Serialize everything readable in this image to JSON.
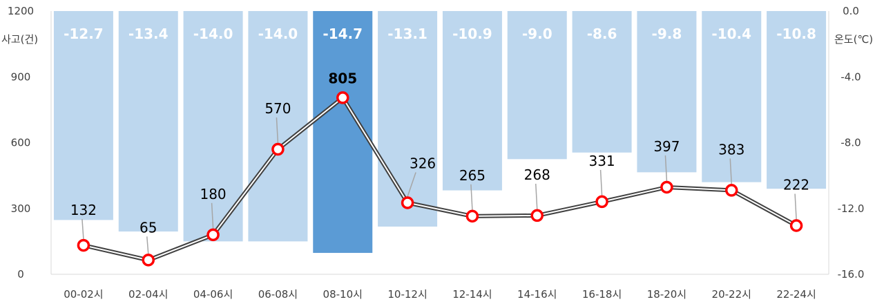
{
  "chart_data": {
    "type": "bar+line",
    "categories": [
      "00-02시",
      "02-04시",
      "04-06시",
      "06-08시",
      "08-10시",
      "10-12시",
      "12-14시",
      "14-16시",
      "16-18시",
      "18-20시",
      "20-22시",
      "22-24시"
    ],
    "series": [
      {
        "name": "온도(℃)",
        "type": "bar",
        "axis": "right",
        "values": [
          -12.7,
          -13.4,
          -14.0,
          -14.0,
          -14.7,
          -13.1,
          -10.9,
          -9.0,
          -8.6,
          -9.8,
          -10.4,
          -10.8
        ],
        "labels": [
          "-12.7",
          "-13.4",
          "-14.0",
          "-14.0",
          "-14.7",
          "-13.1",
          "-10.9",
          "-9.0",
          "-8.6",
          "-9.8",
          "-10.4",
          "-10.8"
        ],
        "highlight_index": 4
      },
      {
        "name": "사고(건)",
        "type": "line",
        "axis": "left",
        "values": [
          132,
          65,
          180,
          570,
          805,
          326,
          265,
          268,
          331,
          397,
          383,
          222
        ],
        "labels": [
          "132",
          "65",
          "180",
          "570",
          "805",
          "326",
          "265",
          "268",
          "331",
          "397",
          "383",
          "222"
        ],
        "highlight_index": 4
      }
    ],
    "left_axis": {
      "title": "사고(건)",
      "ylim": [
        0,
        1200
      ],
      "ticks": [
        "1200",
        "900",
        "600",
        "300",
        "0"
      ],
      "tick_values": [
        1200,
        900,
        600,
        300,
        0
      ]
    },
    "right_axis": {
      "title": "온도(℃)",
      "ylim": [
        -16.0,
        0.0
      ],
      "ticks": [
        "0.0",
        "-4.0",
        "-8.0",
        "-12.0",
        "-16.0"
      ],
      "tick_values": [
        0.0,
        -4.0,
        -8.0,
        -12.0,
        -16.0
      ]
    },
    "grid": false,
    "legend": "none",
    "colors": {
      "bar": "#bdd7ee",
      "bar_highlight": "#5b9bd5",
      "line": "#404040",
      "marker_edge": "#ff0000",
      "marker_fill": "#ffffff",
      "leader": "#a6a6a6"
    }
  }
}
